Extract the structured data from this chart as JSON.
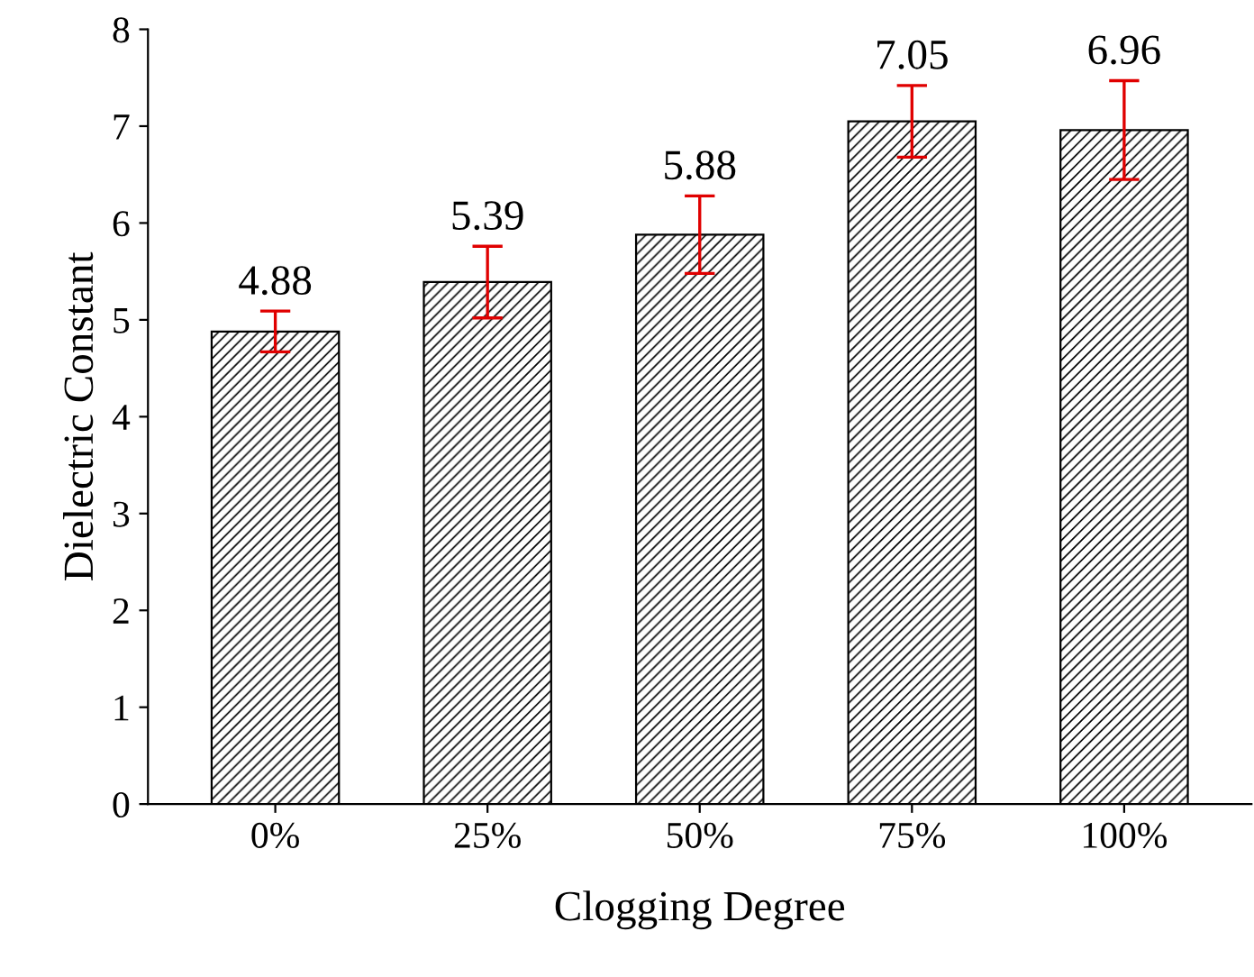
{
  "chart_data": {
    "type": "bar",
    "xlabel": "Clogging Degree",
    "ylabel": "Dielectric Constant",
    "categories": [
      "0%",
      "25%",
      "50%",
      "75%",
      "100%"
    ],
    "values": [
      4.88,
      5.39,
      5.88,
      7.05,
      6.96
    ],
    "errors": [
      0.21,
      0.37,
      0.4,
      0.37,
      0.51
    ],
    "color": "#000000",
    "ylim": [
      0,
      8
    ],
    "yticks": [
      0,
      1,
      2,
      3,
      4,
      5,
      6,
      7,
      8
    ],
    "data_labels": true,
    "grid": false
  }
}
